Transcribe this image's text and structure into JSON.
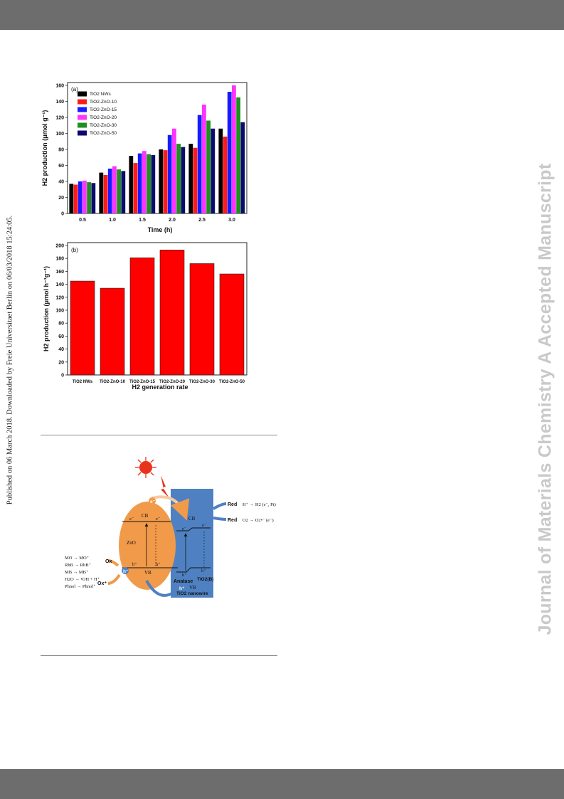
{
  "side_note": "Published on 06 March 2018. Downloaded by Freie Universitaet Berlin on 06/03/2018 15:24:05.",
  "watermark": "Journal of Materials Chemistry A Accepted Manuscript",
  "colors": {
    "header_bar": "#6d6d6d",
    "watermark": "#c9c9c9",
    "tio2_nws": "#000000",
    "tio2_zno_10": "#ff1a1a",
    "tio2_zno_15": "#1a1aff",
    "tio2_zno_20": "#ff33ff",
    "tio2_zno_30": "#1f8f1f",
    "tio2_zno_50": "#0b0b6e",
    "zno": "#f19a4a",
    "tio2_block": "#4f81c2"
  },
  "chart_data": [
    {
      "type": "bar",
      "panel": "(a)",
      "categories": [
        "0.5",
        "1.0",
        "1.5",
        "2.0",
        "2.5",
        "3.0"
      ],
      "series": [
        {
          "name": "TiO2 NWs",
          "values": [
            37,
            51,
            72,
            80,
            87,
            106
          ]
        },
        {
          "name": "TiO2-ZnO-10",
          "values": [
            36,
            48,
            63,
            79,
            82,
            96
          ]
        },
        {
          "name": "TiO2-ZnO-15",
          "values": [
            40,
            56,
            75,
            98,
            123,
            152
          ]
        },
        {
          "name": "TiO2-ZnO-20",
          "values": [
            41,
            59,
            78,
            106,
            136,
            160
          ]
        },
        {
          "name": "TiO2-ZnO-30",
          "values": [
            39,
            55,
            74,
            87,
            116,
            145
          ]
        },
        {
          "name": "TiO2-ZnO-50",
          "values": [
            38,
            53,
            73,
            83,
            106,
            114
          ]
        }
      ],
      "xlabel": "Time (h)",
      "ylabel": "H2 production (μmol g⁻¹)",
      "ylim": [
        0,
        160
      ],
      "yticks": [
        "0",
        "20",
        "40",
        "60",
        "80",
        "100",
        "120",
        "140",
        "160"
      ],
      "legend": "top-left"
    },
    {
      "type": "bar",
      "panel": "(b)",
      "categories": [
        "TiO2 NWs",
        "TiO2-ZnO-10",
        "TiO2-ZnO-15",
        "TiO2-ZnO-20",
        "TiO2-ZnO-30",
        "TiO2-ZnO-50"
      ],
      "values": [
        145,
        134,
        181,
        193,
        172,
        156
      ],
      "xlabel": "H2 generation rate",
      "ylabel": "H2 production (μmol h⁻¹g⁻¹)",
      "ylim": [
        0,
        200
      ],
      "yticks": [
        "0",
        "20",
        "40",
        "60",
        "80",
        "100",
        "120",
        "140",
        "160",
        "180",
        "200"
      ]
    }
  ],
  "diagram": {
    "zno_label": "ZnO",
    "cb_label": "CB",
    "vb_label": "VB",
    "electron": "e⁻",
    "hole": "h⁺",
    "anatase_label": "Anatase",
    "tio2b_label": "TiO2(B)",
    "nanowire_label": "TiO2 nanowire",
    "red_label": "Red",
    "ox_label": "Ox",
    "ox_plus_label": "Ox⁺",
    "red_reactions": [
      "H⁺ → H2 (e⁻, Pt)",
      "O2 → O2•⁻ (e⁻)"
    ],
    "ox_reactions": [
      "MO → MO⁺",
      "RhB → RhB⁺",
      "MB → MB⁺",
      "H2O → •OH + H⁺",
      "Phnol → Phnol⁺"
    ]
  }
}
